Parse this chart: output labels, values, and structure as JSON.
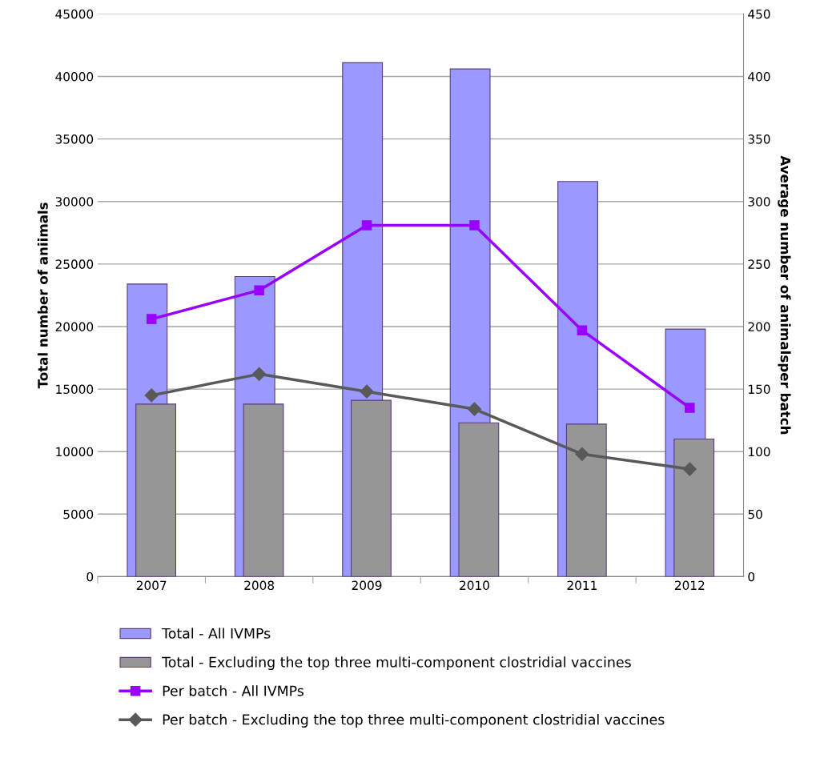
{
  "chart_data": {
    "type": "bar",
    "categories": [
      "2007",
      "2008",
      "2009",
      "2010",
      "2011",
      "2012"
    ],
    "ylabel": "Total number of aniimals",
    "y2label": "Average number of animalsper batch",
    "ylim": [
      0,
      45000
    ],
    "yticks": [
      0,
      5000,
      10000,
      15000,
      20000,
      25000,
      30000,
      35000,
      40000,
      45000
    ],
    "y2lim": [
      0,
      450
    ],
    "y2ticks": [
      0,
      50,
      100,
      150,
      200,
      250,
      300,
      350,
      400,
      450
    ],
    "grid": "y",
    "legend": "bottom",
    "series": [
      {
        "name": "Total - All IVMPs",
        "color": "#9999ff",
        "values": [
          23400,
          24000,
          41100,
          40600,
          31600,
          19800
        ]
      },
      {
        "name": "Total - Excluding the top three multi-component clostridial vaccines",
        "color": "#969696",
        "values": [
          13800,
          13800,
          14100,
          12300,
          12200,
          11000
        ]
      },
      {
        "name": "Per batch - All IVMPs",
        "type": "line",
        "axis": "y2",
        "color": "#9900ff",
        "marker": "square",
        "values": [
          206,
          229,
          281,
          281,
          197,
          135
        ]
      },
      {
        "name": "Per batch - Excluding the top three multi-component clostridial vaccines",
        "type": "line",
        "axis": "y2",
        "color": "#595959",
        "marker": "diamond",
        "values": [
          145,
          162,
          148,
          134,
          98,
          86
        ]
      }
    ]
  }
}
